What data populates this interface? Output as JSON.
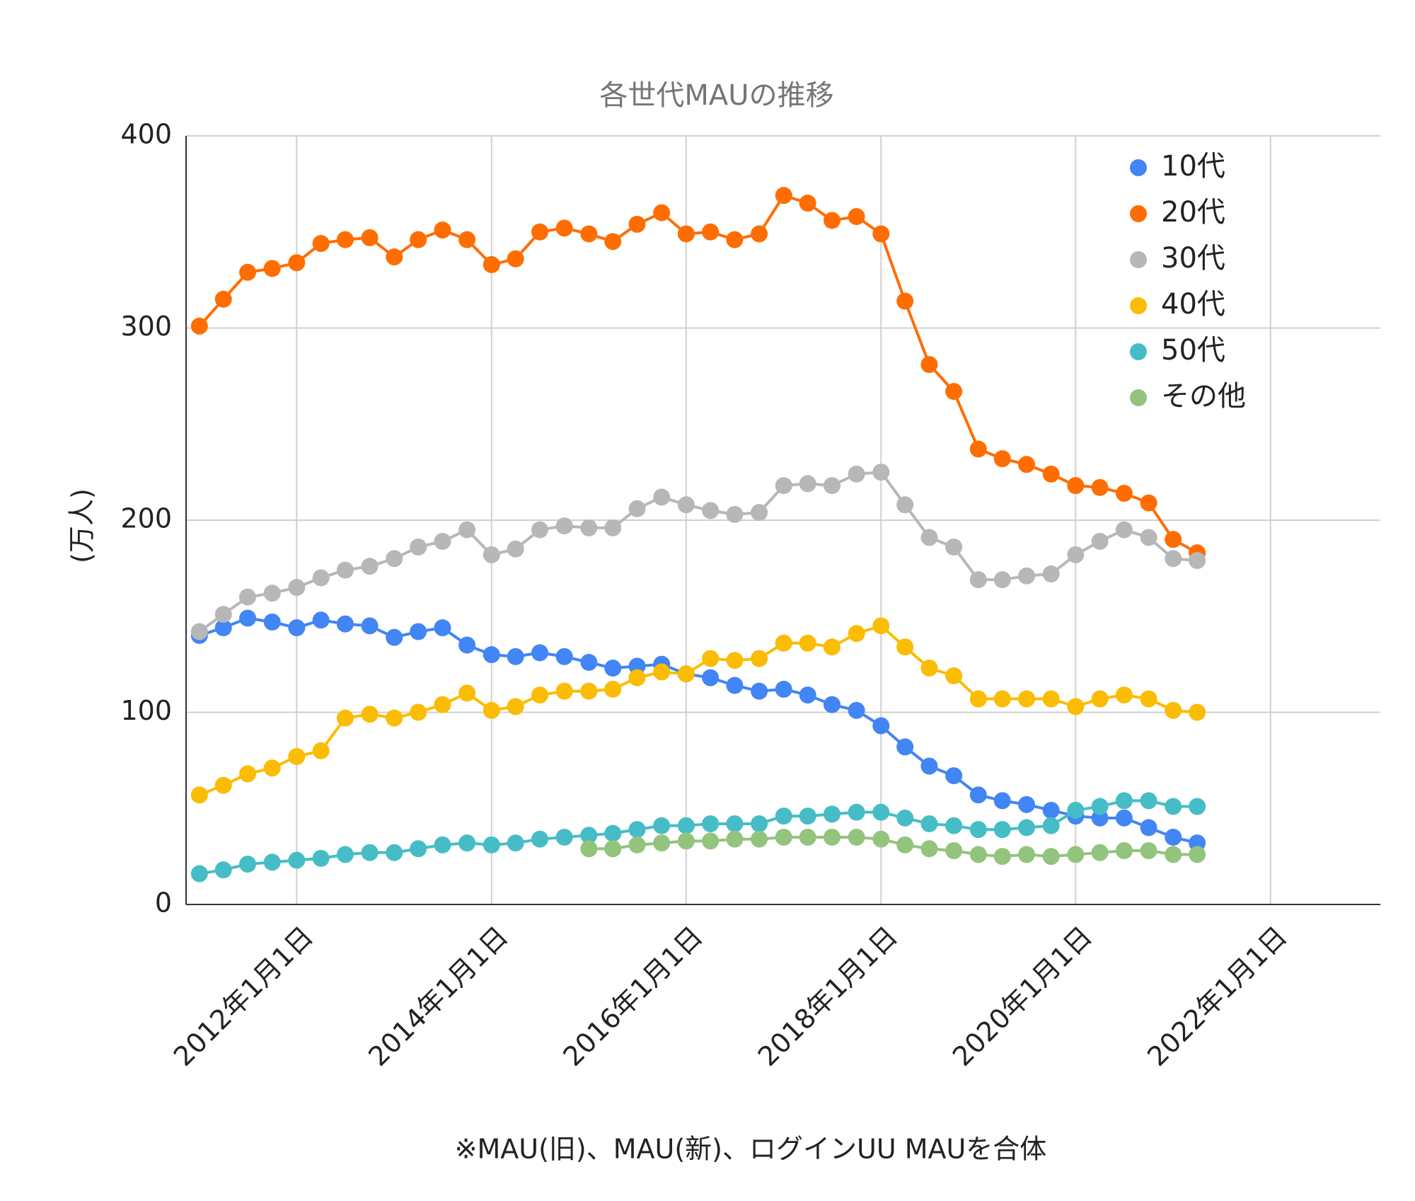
{
  "chart_data": {
    "type": "line",
    "title": "各世代MAUの推移",
    "y_label": "(万人)",
    "note": "※MAU(旧)、MAU(新)、ログインUU MAUを合体",
    "x": [
      "2011-01-01",
      "2011-04-01",
      "2011-07-01",
      "2011-10-01",
      "2012-01-01",
      "2012-04-01",
      "2012-07-01",
      "2012-10-01",
      "2013-01-01",
      "2013-04-01",
      "2013-07-01",
      "2013-10-01",
      "2014-01-01",
      "2014-04-01",
      "2014-07-01",
      "2014-10-01",
      "2015-01-01",
      "2015-04-01",
      "2015-07-01",
      "2015-10-01",
      "2016-01-01",
      "2016-04-01",
      "2016-07-01",
      "2016-10-01",
      "2017-01-01",
      "2017-04-01",
      "2017-07-01",
      "2017-10-01",
      "2018-01-01",
      "2018-04-01",
      "2018-07-01",
      "2018-10-01",
      "2019-01-01",
      "2019-04-01",
      "2019-07-01",
      "2019-10-01",
      "2020-01-01",
      "2020-04-01",
      "2020-07-01",
      "2020-10-01",
      "2021-01-01",
      "2021-04-01"
    ],
    "series": [
      {
        "name": "10代",
        "color": "#4285f4",
        "values": [
          140,
          144,
          149,
          147,
          144,
          148,
          146,
          145,
          139,
          142,
          144,
          135,
          130,
          129,
          131,
          129,
          126,
          123,
          124,
          125,
          120,
          118,
          114,
          111,
          112,
          109,
          104,
          101,
          93,
          82,
          72,
          67,
          57,
          54,
          52,
          49,
          46,
          45,
          45,
          40,
          35,
          32
        ]
      },
      {
        "name": "20代",
        "color": "#ff6d01",
        "values": [
          301,
          315,
          329,
          331,
          334,
          344,
          346,
          347,
          337,
          346,
          351,
          346,
          333,
          336,
          350,
          352,
          349,
          345,
          354,
          360,
          349,
          350,
          346,
          349,
          369,
          365,
          356,
          358,
          349,
          314,
          281,
          267,
          237,
          232,
          229,
          224,
          218,
          217,
          214,
          209,
          190,
          183
        ]
      },
      {
        "name": "30代",
        "color": "#b7b7b7",
        "values": [
          142,
          151,
          160,
          162,
          165,
          170,
          174,
          176,
          180,
          186,
          189,
          195,
          182,
          185,
          195,
          197,
          196,
          196,
          206,
          212,
          208,
          205,
          203,
          204,
          218,
          219,
          218,
          224,
          225,
          208,
          191,
          186,
          169,
          169,
          171,
          172,
          182,
          189,
          195,
          191,
          180,
          179
        ]
      },
      {
        "name": "40代",
        "color": "#fbbc04",
        "values": [
          57,
          62,
          68,
          71,
          77,
          80,
          97,
          99,
          97,
          100,
          104,
          110,
          101,
          103,
          109,
          111,
          111,
          112,
          118,
          121,
          120,
          128,
          127,
          128,
          136,
          136,
          134,
          141,
          145,
          134,
          123,
          119,
          107,
          107,
          107,
          107,
          103,
          107,
          109,
          107,
          101,
          100
        ]
      },
      {
        "name": "50代",
        "color": "#46bdc6",
        "values": [
          16,
          18,
          21,
          22,
          23,
          24,
          26,
          27,
          27,
          29,
          31,
          32,
          31,
          32,
          34,
          35,
          36,
          37,
          39,
          41,
          41,
          42,
          42,
          42,
          46,
          46,
          47,
          48,
          48,
          45,
          42,
          41,
          39,
          39,
          40,
          41,
          49,
          51,
          54,
          54,
          51,
          51
        ]
      },
      {
        "name": "その他",
        "color": "#93c47d",
        "values": [
          null,
          null,
          null,
          null,
          null,
          null,
          null,
          null,
          null,
          null,
          null,
          null,
          null,
          null,
          null,
          null,
          29,
          29,
          31,
          32,
          33,
          33,
          34,
          34,
          35,
          35,
          35,
          35,
          34,
          31,
          29,
          28,
          26,
          25,
          26,
          25,
          26,
          27,
          28,
          28,
          26,
          26
        ]
      }
    ],
    "xlim": [
      "2010-11-12",
      "2023-02-17"
    ],
    "xticks": [
      {
        "value": "2012-01-01",
        "label": "2012年1月1日"
      },
      {
        "value": "2014-01-01",
        "label": "2014年1月1日"
      },
      {
        "value": "2016-01-01",
        "label": "2016年1月1日"
      },
      {
        "value": "2018-01-01",
        "label": "2018年1月1日"
      },
      {
        "value": "2020-01-01",
        "label": "2020年1月1日"
      },
      {
        "value": "2022-01-01",
        "label": "2022年1月1日"
      }
    ],
    "ylim": [
      0,
      400
    ],
    "yticks": [
      0,
      100,
      200,
      300,
      400
    ],
    "grid": true,
    "legend": "top-right"
  }
}
